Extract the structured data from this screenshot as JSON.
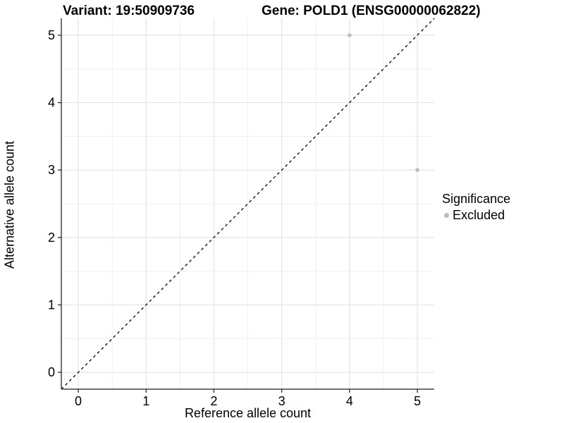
{
  "titles": {
    "variant": "Variant: 19:50909736",
    "gene": "Gene: POLD1 (ENSG00000062822)"
  },
  "legend": {
    "title": "Significance",
    "entries": [
      {
        "label": "Excluded",
        "color": "#bdbdbd"
      }
    ]
  },
  "colors": {
    "background": "#ffffff",
    "grid_major": "#e4e4e4",
    "grid_minor": "#f0f0f0",
    "axis_line": "#404040",
    "tick_mark": "#2b2b2b",
    "tick_text": "#000000",
    "diagonal_line": "#000000",
    "point_excluded": "#bdbdbd"
  },
  "chart_data": {
    "type": "scatter",
    "title": "Variant: 19:50909736   Gene: POLD1 (ENSG00000062822)",
    "xlabel": "Reference allele count",
    "ylabel": "Alternative allele count",
    "xlim": [
      -0.25,
      5.25
    ],
    "ylim": [
      -0.25,
      5.25
    ],
    "x_ticks": [
      0,
      1,
      2,
      3,
      4,
      5
    ],
    "y_ticks": [
      0,
      1,
      2,
      3,
      4,
      5
    ],
    "x_minor_gridlines": [
      0.5,
      1.5,
      2.5,
      3.5,
      4.5
    ],
    "y_minor_gridlines": [
      0.5,
      1.5,
      2.5,
      3.5,
      4.5
    ],
    "grid": "on",
    "legend_position": "right",
    "series": [
      {
        "name": "Excluded",
        "points": [
          {
            "x": 4,
            "y": 5
          },
          {
            "x": 5,
            "y": 3
          }
        ]
      }
    ],
    "reference_line": {
      "type": "identity y=x",
      "style": "dashed",
      "from": [
        -0.25,
        -0.25
      ],
      "to": [
        5.25,
        5.25
      ]
    }
  }
}
